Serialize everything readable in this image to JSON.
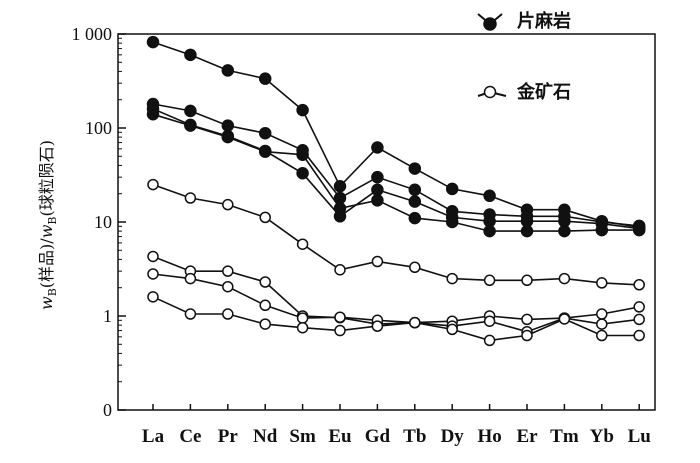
{
  "chart_data": {
    "type": "line",
    "y_scale": "log",
    "ylim": [
      0.1,
      1000
    ],
    "y_ticks": [
      {
        "value": 1000,
        "label": "1 000"
      },
      {
        "value": 100,
        "label": "100"
      },
      {
        "value": 10,
        "label": "10"
      },
      {
        "value": 1,
        "label": "1"
      },
      {
        "value": 0.1,
        "label": "0"
      }
    ],
    "ylabel": {
      "w1": "w",
      "sub1": "B",
      "t1": "(样品)/",
      "w2": "w",
      "sub2": "B",
      "t2": "(球粒陨石)"
    },
    "categories": [
      "La",
      "Ce",
      "Pr",
      "Nd",
      "Sm",
      "Eu",
      "Gd",
      "Tb",
      "Dy",
      "Ho",
      "Er",
      "Tm",
      "Yb",
      "Lu"
    ],
    "legend": [
      {
        "label": "片麻岩",
        "marker": "filled-circle"
      },
      {
        "label": "金矿石",
        "marker": "open-circle"
      }
    ],
    "series": [
      {
        "group": "片麻岩",
        "marker": "filled",
        "values": [
          820,
          600,
          410,
          335,
          155,
          24,
          62,
          37,
          22.5,
          19,
          13.5,
          13.5,
          10.2,
          8.8
        ]
      },
      {
        "group": "片麻岩",
        "marker": "filled",
        "values": [
          180,
          152,
          106,
          88,
          58,
          18,
          30,
          22,
          13,
          12,
          11.5,
          11.5,
          10,
          9.1
        ]
      },
      {
        "group": "片麻岩",
        "marker": "filled",
        "values": [
          160,
          108,
          82,
          57,
          33,
          11.5,
          22,
          16.5,
          11.2,
          10.2,
          10.2,
          10.2,
          9.6,
          8.5
        ]
      },
      {
        "group": "片麻岩",
        "marker": "filled",
        "values": [
          140,
          106,
          80,
          56,
          52,
          14,
          17,
          11,
          10,
          8,
          8,
          8,
          8.2,
          8.2
        ]
      },
      {
        "group": "金矿石",
        "marker": "open",
        "values": [
          25,
          18,
          15.3,
          11.2,
          5.8,
          3.1,
          3.8,
          3.3,
          2.5,
          2.4,
          2.4,
          2.5,
          2.25,
          2.15
        ]
      },
      {
        "group": "金矿石",
        "marker": "open",
        "values": [
          4.3,
          3.0,
          3.0,
          2.3,
          1.0,
          0.96,
          0.82,
          0.85,
          0.88,
          1.0,
          0.92,
          0.95,
          1.05,
          1.25
        ]
      },
      {
        "group": "金矿石",
        "marker": "open",
        "values": [
          2.8,
          2.5,
          2.05,
          1.3,
          0.95,
          0.97,
          0.9,
          0.85,
          0.78,
          0.88,
          0.68,
          0.95,
          0.82,
          0.92
        ]
      },
      {
        "group": "金矿石",
        "marker": "open",
        "values": [
          1.6,
          1.05,
          1.05,
          0.82,
          0.75,
          0.7,
          0.78,
          0.85,
          0.72,
          0.55,
          0.62,
          0.93,
          0.62,
          0.62
        ]
      }
    ],
    "grid": false,
    "legend_position": "top-right"
  }
}
